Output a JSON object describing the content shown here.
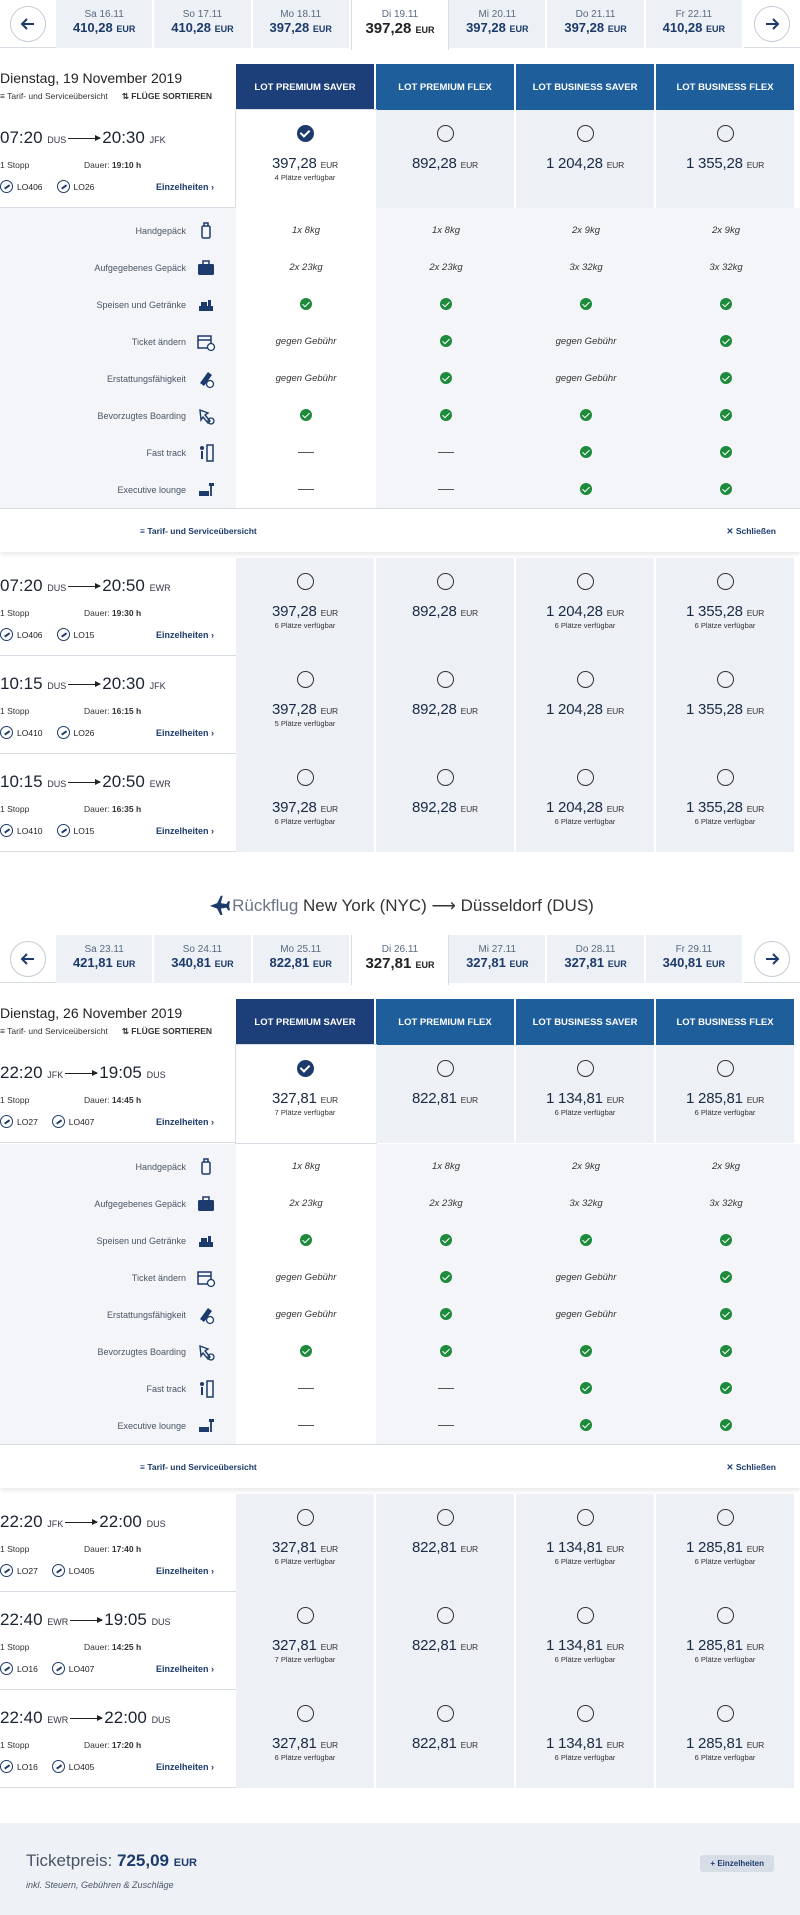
{
  "outbound": {
    "dates": [
      {
        "label": "Sa 16.11",
        "price": "410,28",
        "cur": "EUR"
      },
      {
        "label": "So 17.11",
        "price": "410,28",
        "cur": "EUR"
      },
      {
        "label": "Mo 18.11",
        "price": "397,28",
        "cur": "EUR"
      },
      {
        "label": "Di 19.11",
        "price": "397,28",
        "cur": "EUR"
      },
      {
        "label": "Mi 20.11",
        "price": "397,28",
        "cur": "EUR"
      },
      {
        "label": "Do 21.11",
        "price": "397,28",
        "cur": "EUR"
      },
      {
        "label": "Fr 22.11",
        "price": "410,28",
        "cur": "EUR"
      }
    ],
    "day": "Dienstag, 19 November 2019",
    "flights": [
      {
        "dep": "07:20",
        "from": "DUS",
        "arr": "20:30",
        "to": "JFK",
        "stops": "1 Stopp",
        "dur_label": "Dauer:",
        "dur": "19:10 h",
        "f1": "LO406",
        "f2": "LO26",
        "details": "Einzelheiten",
        "prices": [
          {
            "p": "397,28",
            "s": "4 Plätze verfügbar"
          },
          {
            "p": "892,28",
            "s": ""
          },
          {
            "p": "1 204,28",
            "s": ""
          },
          {
            "p": "1 355,28",
            "s": ""
          }
        ]
      },
      {
        "dep": "07:20",
        "from": "DUS",
        "arr": "20:50",
        "to": "EWR",
        "stops": "1 Stopp",
        "dur_label": "Dauer:",
        "dur": "19:30 h",
        "f1": "LO406",
        "f2": "LO15",
        "details": "Einzelheiten",
        "prices": [
          {
            "p": "397,28",
            "s": "6 Plätze verfügbar"
          },
          {
            "p": "892,28",
            "s": ""
          },
          {
            "p": "1 204,28",
            "s": "6 Plätze verfügbar"
          },
          {
            "p": "1 355,28",
            "s": "6 Plätze verfügbar"
          }
        ]
      },
      {
        "dep": "10:15",
        "from": "DUS",
        "arr": "20:30",
        "to": "JFK",
        "stops": "1 Stopp",
        "dur_label": "Dauer:",
        "dur": "16:15 h",
        "f1": "LO410",
        "f2": "LO26",
        "details": "Einzelheiten",
        "prices": [
          {
            "p": "397,28",
            "s": "5 Plätze verfügbar"
          },
          {
            "p": "892,28",
            "s": ""
          },
          {
            "p": "1 204,28",
            "s": ""
          },
          {
            "p": "1 355,28",
            "s": ""
          }
        ]
      },
      {
        "dep": "10:15",
        "from": "DUS",
        "arr": "20:50",
        "to": "EWR",
        "stops": "1 Stopp",
        "dur_label": "Dauer:",
        "dur": "16:35 h",
        "f1": "LO410",
        "f2": "LO15",
        "details": "Einzelheiten",
        "prices": [
          {
            "p": "397,28",
            "s": "6 Plätze verfügbar"
          },
          {
            "p": "892,28",
            "s": ""
          },
          {
            "p": "1 204,28",
            "s": "6 Plätze verfügbar"
          },
          {
            "p": "1 355,28",
            "s": "6 Plätze verfügbar"
          }
        ]
      }
    ]
  },
  "return": {
    "heading": {
      "label": "Rückflug",
      "from": "New York (NYC)",
      "to": "Düsseldorf (DUS)"
    },
    "dates": [
      {
        "label": "Sa 23.11",
        "price": "421,81",
        "cur": "EUR"
      },
      {
        "label": "So 24.11",
        "price": "340,81",
        "cur": "EUR"
      },
      {
        "label": "Mo 25.11",
        "price": "822,81",
        "cur": "EUR"
      },
      {
        "label": "Di 26.11",
        "price": "327,81",
        "cur": "EUR"
      },
      {
        "label": "Mi 27.11",
        "price": "327,81",
        "cur": "EUR"
      },
      {
        "label": "Do 28.11",
        "price": "327,81",
        "cur": "EUR"
      },
      {
        "label": "Fr 29.11",
        "price": "340,81",
        "cur": "EUR"
      }
    ],
    "day": "Dienstag, 26 November 2019",
    "flights": [
      {
        "dep": "22:20",
        "from": "JFK",
        "arr": "19:05",
        "to": "DUS",
        "stops": "1 Stopp",
        "dur_label": "Dauer:",
        "dur": "14:45 h",
        "f1": "LO27",
        "f2": "LO407",
        "details": "Einzelheiten",
        "prices": [
          {
            "p": "327,81",
            "s": "7 Plätze verfügbar"
          },
          {
            "p": "822,81",
            "s": ""
          },
          {
            "p": "1 134,81",
            "s": "6 Plätze verfügbar"
          },
          {
            "p": "1 285,81",
            "s": "6 Plätze verfügbar"
          }
        ]
      },
      {
        "dep": "22:20",
        "from": "JFK",
        "arr": "22:00",
        "to": "DUS",
        "stops": "1 Stopp",
        "dur_label": "Dauer:",
        "dur": "17:40 h",
        "f1": "LO27",
        "f2": "LO405",
        "details": "Einzelheiten",
        "prices": [
          {
            "p": "327,81",
            "s": "6 Plätze verfügbar"
          },
          {
            "p": "822,81",
            "s": ""
          },
          {
            "p": "1 134,81",
            "s": "6 Plätze verfügbar"
          },
          {
            "p": "1 285,81",
            "s": "6 Plätze verfügbar"
          }
        ]
      },
      {
        "dep": "22:40",
        "from": "EWR",
        "arr": "19:05",
        "to": "DUS",
        "stops": "1 Stopp",
        "dur_label": "Dauer:",
        "dur": "14:25 h",
        "f1": "LO16",
        "f2": "LO407",
        "details": "Einzelheiten",
        "prices": [
          {
            "p": "327,81",
            "s": "7 Plätze verfügbar"
          },
          {
            "p": "822,81",
            "s": ""
          },
          {
            "p": "1 134,81",
            "s": "6 Plätze verfügbar"
          },
          {
            "p": "1 285,81",
            "s": "6 Plätze verfügbar"
          }
        ]
      },
      {
        "dep": "22:40",
        "from": "EWR",
        "arr": "22:00",
        "to": "DUS",
        "stops": "1 Stopp",
        "dur_label": "Dauer:",
        "dur": "17:20 h",
        "f1": "LO16",
        "f2": "LO405",
        "details": "Einzelheiten",
        "prices": [
          {
            "p": "327,81",
            "s": "6 Plätze verfügbar"
          },
          {
            "p": "822,81",
            "s": ""
          },
          {
            "p": "1 134,81",
            "s": "6 Plätze verfügbar"
          },
          {
            "p": "1 285,81",
            "s": "6 Plätze verfügbar"
          }
        ]
      }
    ]
  },
  "currency": "EUR",
  "tools": {
    "overview": "Tarif- und Serviceübersicht",
    "sort": "FLÜGE SORTIEREN"
  },
  "columns": [
    "LOT PREMIUM SAVER",
    "LOT PREMIUM FLEX",
    "LOT BUSINESS SAVER",
    "LOT BUSINESS FLEX"
  ],
  "fare_details": {
    "rows": [
      {
        "label": "Handgepäck",
        "icon": "carry-on-bag-icon",
        "vals": [
          "1x 8kg",
          "1x 8kg",
          "2x 9kg",
          "2x 9kg"
        ]
      },
      {
        "label": "Aufgegebenes Gepäck",
        "icon": "checked-baggage-icon",
        "vals": [
          "2x 23kg",
          "2x 23kg",
          "3x 32kg",
          "3x 32kg"
        ]
      },
      {
        "label": "Speisen und Getränke",
        "icon": "meal-icon",
        "vals": [
          "check",
          "check",
          "check",
          "check"
        ]
      },
      {
        "label": "Ticket ändern",
        "icon": "calendar-change-icon",
        "vals": [
          "gegen Gebühr",
          "check",
          "gegen Gebühr",
          "check"
        ]
      },
      {
        "label": "Erstattungsfähigkeit",
        "icon": "refund-ticket-icon",
        "vals": [
          "gegen Gebühr",
          "check",
          "gegen Gebühr",
          "check"
        ]
      },
      {
        "label": "Bevorzugtes Boarding",
        "icon": "priority-boarding-icon",
        "vals": [
          "check",
          "check",
          "check",
          "check"
        ]
      },
      {
        "label": "Fast track",
        "icon": "fast-track-icon",
        "vals": [
          "dash",
          "dash",
          "check",
          "check"
        ]
      },
      {
        "label": "Executive lounge",
        "icon": "lounge-icon",
        "vals": [
          "dash",
          "dash",
          "check",
          "check"
        ]
      }
    ],
    "footer_overview": "Tarif- und Serviceübersicht",
    "close": "Schließen"
  },
  "summary": {
    "label": "Ticketpreis:",
    "total": "725,09",
    "cur": "EUR",
    "note": "inkl. Steuern, Gebühren & Zuschläge",
    "details_button": "+ Einzelheiten"
  },
  "colors": {
    "dark": "#1c3f79",
    "light": "#1e5e9b",
    "check": "#1e8a3b"
  }
}
